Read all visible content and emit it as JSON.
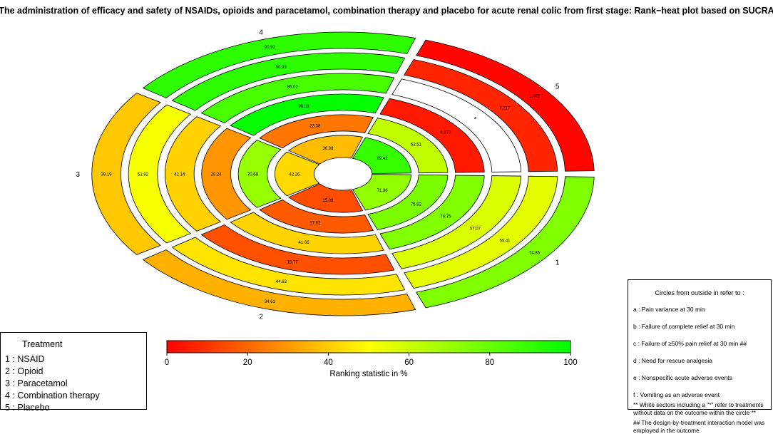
{
  "title": "The administration of efficacy and safety of NSAIDs, opioids and paracetamol, combination therapy and placebo for acute renal colic from first stage: Rank−heat plot based on SUCRA",
  "chart_data": {
    "type": "heatmap",
    "subtype": "rank-heat radial",
    "treatments": [
      {
        "id": "1",
        "sector_label": "1",
        "values": [
          74.85,
          55.41,
          57.07,
          74.75,
          75.82,
          71.36
        ]
      },
      {
        "id": "2",
        "sector_label": "2",
        "values": [
          34.61,
          44.63,
          15.77,
          41.66,
          17.62,
          15.08
        ]
      },
      {
        "id": "3",
        "sector_label": "3",
        "values": [
          39.19,
          51.92,
          41.14,
          29.24,
          70.68,
          42.26
        ]
      },
      {
        "id": "4",
        "sector_label": "4",
        "values": [
          90.92,
          90.93,
          86.02,
          99.08,
          23.38,
          36.88
        ]
      },
      {
        "id": "5",
        "sector_label": "5",
        "values": [
          1.403,
          7.217,
          null,
          4.873,
          62.51,
          89.42
        ]
      }
    ],
    "missing_marker": "*",
    "colorbar": {
      "title": "Ranking statistic in %",
      "ticks": [
        "0",
        "20",
        "40",
        "60",
        "80",
        "100"
      ],
      "range": [
        0,
        100
      ],
      "color_low": "#ff0000",
      "color_mid": "#ffff00",
      "color_high": "#00ff00"
    }
  },
  "legend": {
    "title": "Treatment",
    "items": [
      "1 : NSAID",
      "2 : Opioid",
      "3 : Paracetamol",
      "4 : Combination therapy",
      "5 : Placebo"
    ]
  },
  "notes": {
    "title": "Circles from outside in refer to :",
    "items": [
      "a : Pain variance at 30 min",
      "b : Failure of complete relief at 30 min",
      "c : Failure of ≥50% pain relief at 30 min ##",
      "d : Need for rescue analgesia",
      "e : Nonspecific acute adverse events",
      "f : Vomiting as an adverse event"
    ],
    "footnote1": "** White sectors including a \"*\" refer to treatments without data on the outcome within the circle **",
    "footnote2": "## The design-by-treatment interaction model was employed in the outcome."
  }
}
